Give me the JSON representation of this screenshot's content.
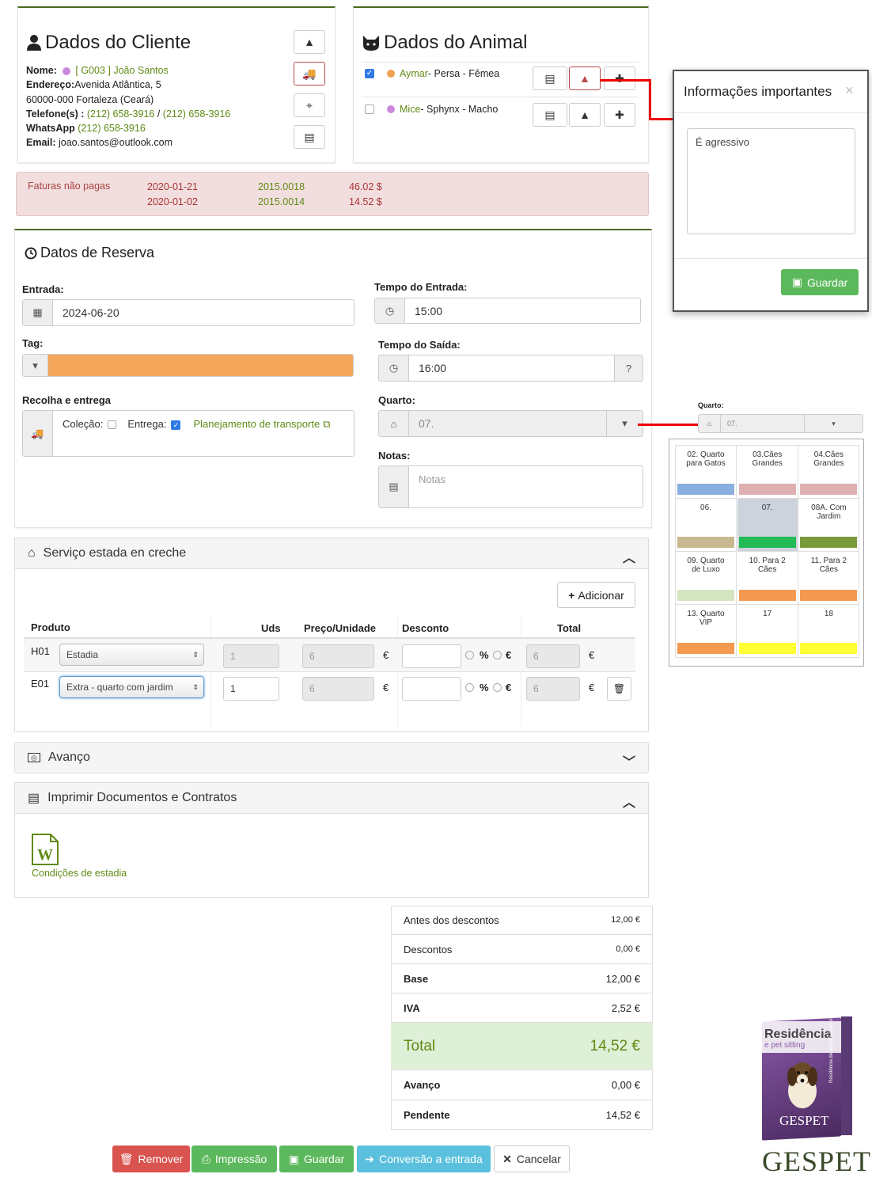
{
  "client": {
    "title": "Dados do Cliente",
    "name_label": "Nome:",
    "name_value": "[ G003 ] João Santos",
    "address_label": "Endereço:",
    "address_value": "Avenida Atlântica, 5",
    "city_line": "60000-000  Fortaleza (Ceará)",
    "phone_label": "Telefone(s) :",
    "phone1": "(212) 658-3916",
    "phone_sep": " / ",
    "phone2": "(212) 658-3916",
    "whatsapp_label": "WhatsApp",
    "whatsapp_value": "(212) 658-3916",
    "email_label": "Email:",
    "email_value": "joao.santos@outlook.com"
  },
  "animal": {
    "title": "Dados do Animal",
    "pets": [
      {
        "name": "Aymar",
        "desc": " - Persa - Fêmea",
        "color": "#f0a050"
      },
      {
        "name": "Mice",
        "desc": " - Sphynx - Macho",
        "color": "#cc88dd"
      }
    ]
  },
  "invoices": {
    "label": "Faturas não pagas",
    "rows": [
      {
        "date": "2020-01-21",
        "number": "2015.0018",
        "amount": "46.02 $"
      },
      {
        "date": "2020-01-02",
        "number": "2015.0014",
        "amount": "14.52 $"
      }
    ]
  },
  "reservation": {
    "title": "Datos de Reserva",
    "entrada_label": "Entrada:",
    "entrada_value": "2024-06-20",
    "tempo_entrada_label": "Tempo do Entrada:",
    "tempo_entrada_value": "15:00",
    "tag_label": "Tag:",
    "tag_color": "#f4a65a",
    "tempo_saida_label": "Tempo do Saída:",
    "tempo_saida_value": "16:00",
    "recolha_label": "Recolha e entrega",
    "colecao_label": "Coleção:",
    "entrega_label": "Entrega:",
    "transport_link": "Planejamento de transporte",
    "quarto_label": "Quarto:",
    "quarto_value": "07.",
    "notas_label": "Notas:",
    "notas_placeholder": "Notas"
  },
  "popup": {
    "title": "Informações importantes",
    "close": "×",
    "text": "É agressivo",
    "save": "Guardar"
  },
  "room_picker": {
    "label": "Quarto:",
    "value": "07.",
    "rooms": [
      {
        "name": "02. Quarto para Gatos",
        "color": "#8aaee0"
      },
      {
        "name": "03.Cães Grandes",
        "color": "#e0b0b0"
      },
      {
        "name": "04.Cães Grandes",
        "color": "#e0b0b0"
      },
      {
        "name": "06.",
        "color": "#c8b890"
      },
      {
        "name": "07.",
        "color": "#22bb55"
      },
      {
        "name": "08A. Com Jardim",
        "color": "#7a9a3a"
      },
      {
        "name": "09. Quarto de Luxo",
        "color": "#d4e4c0"
      },
      {
        "name": "10. Para 2 Cães",
        "color": "#f49a50"
      },
      {
        "name": "11. Para 2 Cães",
        "color": "#f49a50"
      },
      {
        "name": "13. Quarto VIP",
        "color": "#f49a50"
      },
      {
        "name": "17",
        "color": "#ffff33"
      },
      {
        "name": "18",
        "color": "#ffff33"
      }
    ]
  },
  "service": {
    "title": "Serviço estada en creche",
    "add_label": "Adicionar",
    "headers": [
      "Produto",
      "Uds",
      "Preço/Unidade",
      "Desconto",
      "Total"
    ],
    "rows": [
      {
        "code": "H01",
        "product": "Estadia",
        "qty": "1",
        "price": "6",
        "currency": "€",
        "pct": "%",
        "eur": "€",
        "total": "6"
      },
      {
        "code": "E01",
        "product": "Extra - quarto com jardim",
        "qty": "1",
        "price": "6",
        "currency": "€",
        "pct": "%",
        "eur": "€",
        "total": "6"
      }
    ]
  },
  "avanco": {
    "title": "Avanço"
  },
  "print": {
    "title": "Imprimir Documentos e Contratos",
    "doc_label": "Condições de estadia"
  },
  "summary": {
    "antes_label": "Antes dos descontos",
    "antes_value": "12,00 €",
    "descontos_label": "Descontos",
    "descontos_value": "0,00 €",
    "base_label": "Base",
    "base_value": "12,00 €",
    "iva_label": "IVA",
    "iva_value": "2,52 €",
    "total_label": "Total",
    "total_value": "14,52 €",
    "avanco_label": "Avanço",
    "avanco_value": "0,00 €",
    "pendente_label": "Pendente",
    "pendente_value": "14,52 €"
  },
  "footer": {
    "remover": "Remover",
    "impressao": "Impressão",
    "guardar": "Guardar",
    "conversao": "Conversão a entrada",
    "cancelar": "Cancelar"
  },
  "brand": {
    "box_title": "Residência",
    "box_sub": "e pet sitting",
    "box_side": "Residência de animais e pet sitting",
    "box_logo": "GESPET",
    "logo": "GESPET"
  },
  "colors": {
    "accent_green": "#5f8a14",
    "danger": "#d9534f",
    "success": "#5cb85c",
    "info": "#5bc0de"
  }
}
